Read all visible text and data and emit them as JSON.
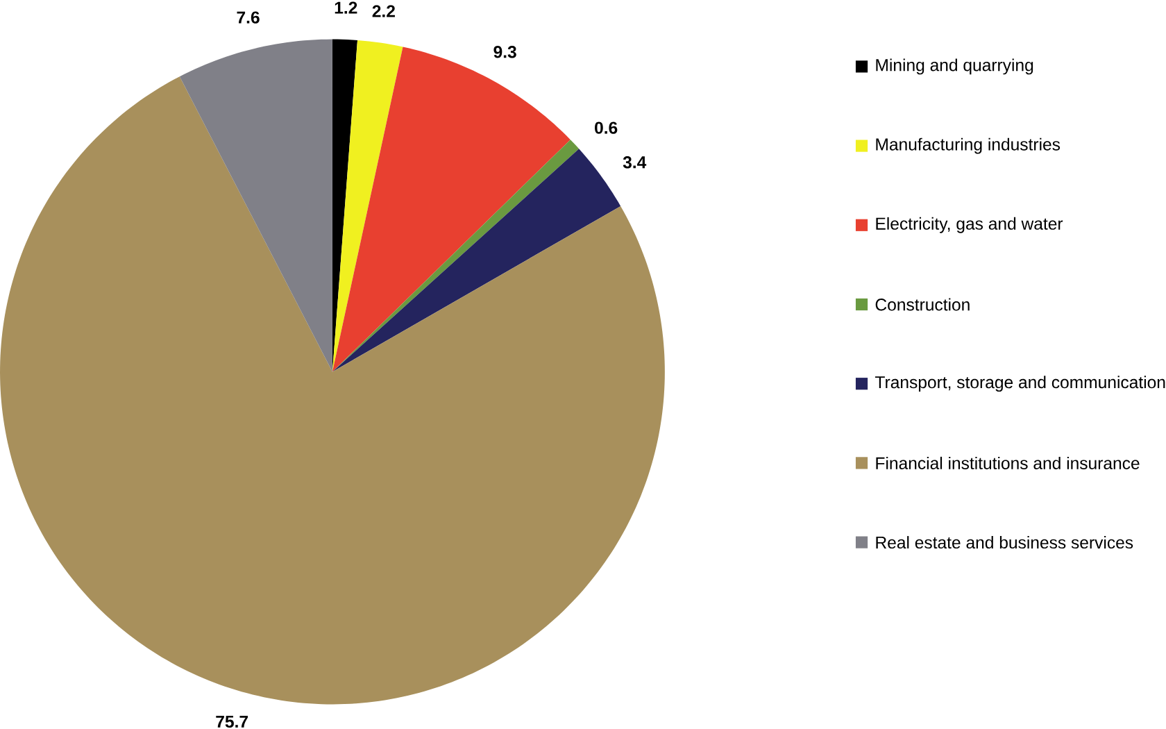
{
  "chart_data": {
    "type": "pie",
    "categories": [
      "Mining and quarrying",
      "Manufacturing industries",
      "Electricity, gas and water",
      "Construction",
      "Transport, storage and communication",
      "Financial institutions and insurance",
      "Real estate and business services"
    ],
    "values": [
      1.2,
      2.2,
      9.3,
      0.6,
      3.4,
      75.7,
      7.6
    ],
    "colors": [
      "#000000",
      "#f0f020",
      "#e84030",
      "#6a9a40",
      "#24245e",
      "#a8905c",
      "#808088"
    ],
    "data_labels": true,
    "legend": "right"
  }
}
